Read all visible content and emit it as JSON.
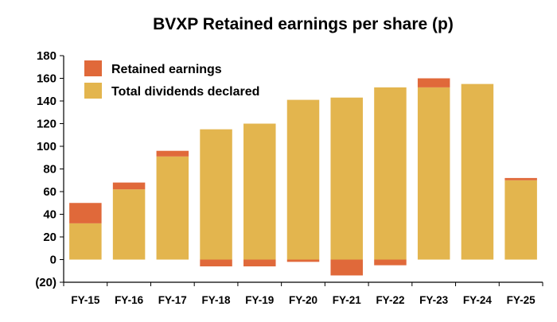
{
  "chart_data": {
    "type": "bar",
    "stacked": true,
    "title": "BVXP Retained earnings per share (p)",
    "xlabel": "",
    "ylabel": "",
    "ylim": [
      -20,
      180
    ],
    "yticks": [
      180,
      160,
      140,
      120,
      100,
      80,
      60,
      40,
      20,
      0,
      -20
    ],
    "ytick_labels": [
      "180",
      "160",
      "140",
      "120",
      "100",
      "80",
      "60",
      "40",
      "20",
      "0",
      "(20)"
    ],
    "categories": [
      "FY-15",
      "FY-16",
      "FY-17",
      "FY-18",
      "FY-19",
      "FY-20",
      "FY-21",
      "FY-22",
      "FY-23",
      "FY-24",
      "FY-25"
    ],
    "series": [
      {
        "name": "Total dividends declared",
        "color": "#E3B54E",
        "values": [
          32,
          62,
          91,
          115,
          120,
          141,
          143,
          152,
          152,
          155,
          70
        ]
      },
      {
        "name": "Retained earnings",
        "color": "#E0693A",
        "values": [
          18,
          6,
          5,
          -6,
          -6,
          -2,
          -14,
          -5,
          8,
          0,
          2
        ]
      }
    ],
    "legend_position": "top-left",
    "grid": false
  }
}
